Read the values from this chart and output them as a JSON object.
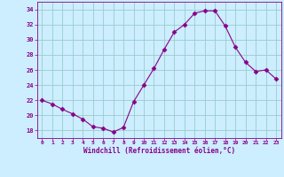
{
  "x": [
    0,
    1,
    2,
    3,
    4,
    5,
    6,
    7,
    8,
    9,
    10,
    11,
    12,
    13,
    14,
    15,
    16,
    17,
    18,
    19,
    20,
    21,
    22,
    23
  ],
  "y": [
    22.0,
    21.5,
    20.8,
    20.2,
    19.5,
    18.5,
    18.3,
    17.8,
    18.4,
    21.8,
    24.0,
    26.2,
    28.7,
    31.0,
    32.0,
    33.5,
    33.8,
    33.8,
    31.8,
    29.0,
    27.0,
    25.8,
    26.0,
    24.8
  ],
  "line_color": "#880088",
  "marker": "D",
  "marker_size": 2.5,
  "bg_color": "#cceeff",
  "grid_color": "#99cccc",
  "tick_color": "#880088",
  "label_color": "#880088",
  "xlabel": "Windchill (Refroidissement éolien,°C)",
  "xlim": [
    -0.5,
    23.5
  ],
  "ylim": [
    17.0,
    35.0
  ],
  "yticks": [
    18,
    20,
    22,
    24,
    26,
    28,
    30,
    32,
    34
  ],
  "xticks": [
    0,
    1,
    2,
    3,
    4,
    5,
    6,
    7,
    8,
    9,
    10,
    11,
    12,
    13,
    14,
    15,
    16,
    17,
    18,
    19,
    20,
    21,
    22,
    23
  ]
}
